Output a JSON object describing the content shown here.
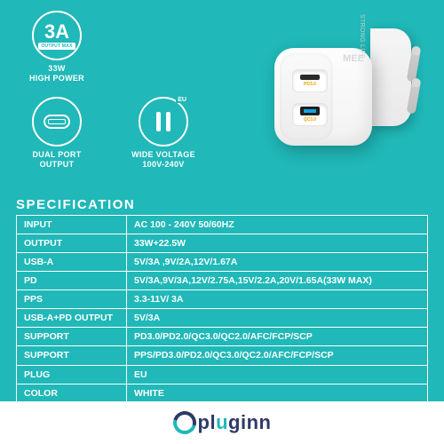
{
  "colors": {
    "background": "#20b8b8",
    "footer_bg": "#ffffff",
    "table_border": "#ffffff",
    "text_light": "#ffffff",
    "brand_navy": "#2e3a66",
    "brand_teal": "#20b8b8"
  },
  "features": {
    "f1": {
      "badge_big": "3A",
      "badge_small": "OUTPUT MAX",
      "label_l1": "33W",
      "label_l2": "HIGH POWER"
    },
    "f2": {
      "label_l1": "DUAL PORT",
      "label_l2": "OUTPUT"
    },
    "f3": {
      "corner": "EU",
      "label_l1": "WIDE VOLTAGE",
      "label_l2": "100V-240V"
    }
  },
  "product": {
    "brand_side": "MEE",
    "side_line": "STRONG LIFE",
    "port_top_tag": "PD3.0",
    "port_bottom_tag": "QC3.0"
  },
  "spec": {
    "title": "SPECIFICATION",
    "rows": [
      {
        "k": "INPUT",
        "v": "AC 100 - 240V 50/60HZ"
      },
      {
        "k": "OUTPUT",
        "v": "33W+22.5W"
      },
      {
        "k": "USB-A",
        "v": "5V/3A ,9V/2A,12V/1.67A"
      },
      {
        "k": "PD",
        "v": "5V/3A,9V/3A,12V/2.75A,15V/2.2A,20V/1.65A(33W MAX)"
      },
      {
        "k": "PPS",
        "v": "3.3-11V/ 3A"
      },
      {
        "k": "USB-A+PD OUTPUT",
        "v": "5V/3A"
      },
      {
        "k": "SUPPORT",
        "v": "PD3.0/PD2.0/QC3.0/QC2.0/AFC/FCP/SCP"
      },
      {
        "k": "SUPPORT",
        "v": "PPS/PD3.0/PD2.0/QC3.0/QC2.0/AFC/FCP/SCP"
      },
      {
        "k": "PLUG",
        "v": "EU"
      },
      {
        "k": "COLOR",
        "v": "WHITE"
      }
    ]
  },
  "footer": {
    "brand_part1": "pl",
    "brand_hl": "u",
    "brand_part2": "ginn"
  }
}
